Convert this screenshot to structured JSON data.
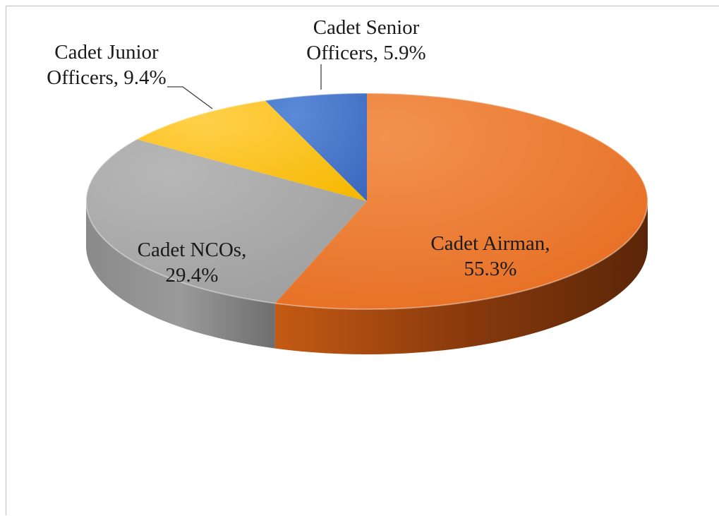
{
  "chart_data": {
    "type": "pie",
    "title": "",
    "slices": [
      {
        "name": "Cadet Airman",
        "value": 55.3,
        "label_line1": "Cadet Airman,",
        "label_line2": "55.3%",
        "color": "#ED7D31"
      },
      {
        "name": "Cadet NCOs",
        "value": 29.4,
        "label_line1": "Cadet NCOs,",
        "label_line2": "29.4%",
        "color": "#A5A5A5"
      },
      {
        "name": "Cadet Junior Officers",
        "value": 9.4,
        "label_line1": "Cadet Junior",
        "label_line2": "Officers, 9.4%",
        "color": "#FFC000"
      },
      {
        "name": "Cadet Senior Officers",
        "value": 5.9,
        "label_line1": "Cadet Senior",
        "label_line2": "Officers, 5.9%",
        "color": "#4472C4"
      }
    ],
    "legend": "none",
    "style": "3d"
  }
}
